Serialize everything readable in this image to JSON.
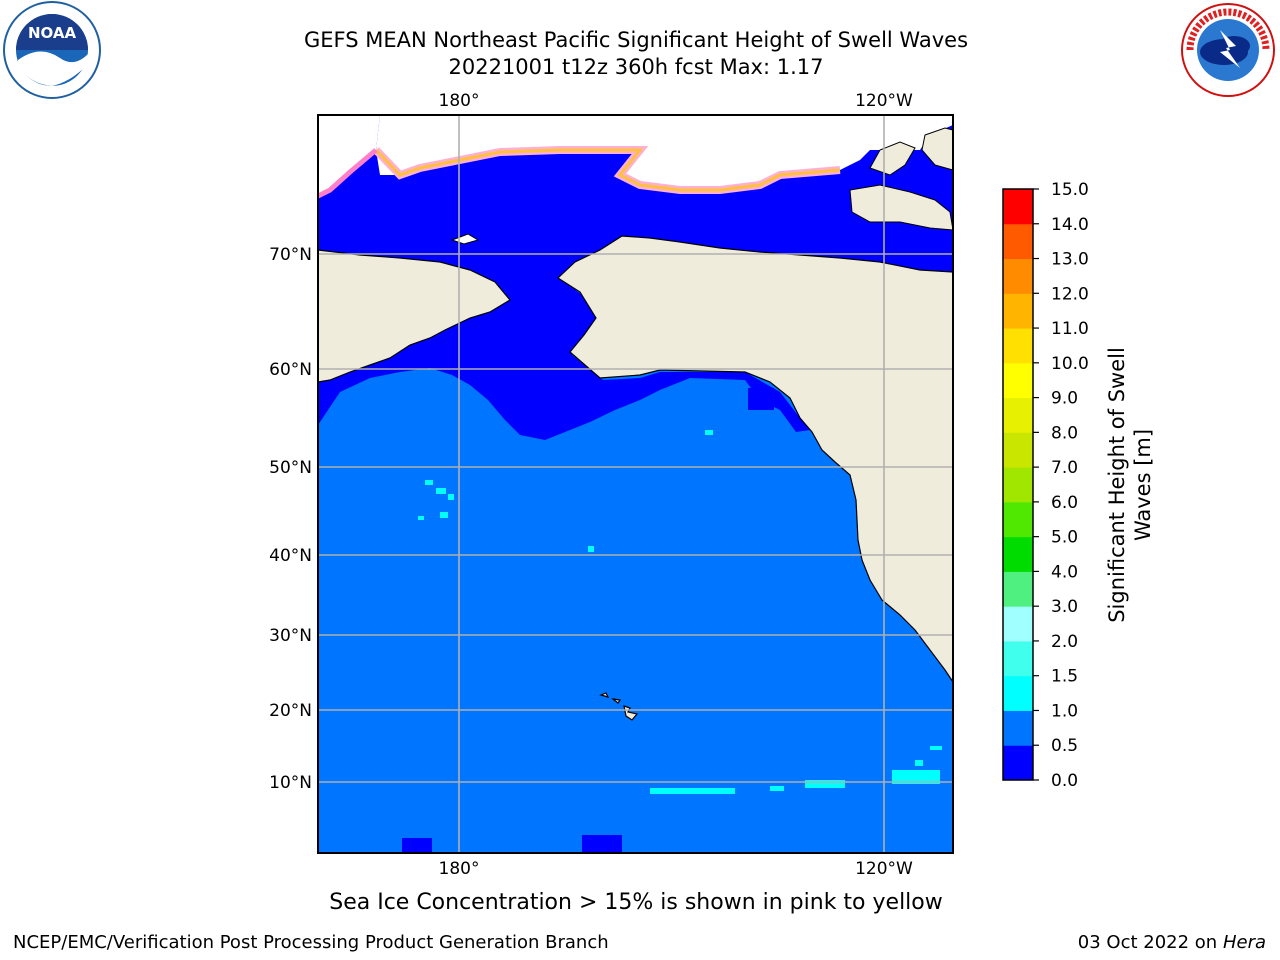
{
  "title": {
    "line1": "GEFS MEAN Northeast Pacific Significant Height of Swell Waves",
    "line2": "20221001 t12z 360h fcst   Max: 1.17"
  },
  "caption": "Sea Ice Concentration > 15% is shown in pink to yellow",
  "footer": {
    "left": "NCEP/EMC/Verification Post Processing Product Generation Branch",
    "right_date": "03 Oct 2022 on ",
    "right_host": "Hera"
  },
  "logos": {
    "left": "noara-logo",
    "left_text": "NOAA",
    "right": "nws-logo"
  },
  "colors": {
    "land": "#efecdc",
    "ice": "#ffffff",
    "band_0_0_5": "#0000ff",
    "band_0_5_1_0": "#0075ff",
    "band_1_0_1_5": "#00ffff",
    "grid": "#b0b0b0"
  },
  "chart_data": {
    "type": "heatmap",
    "title": "GEFS MEAN Northeast Pacific Significant Height of Swell Waves",
    "subtitle": "20221001 t12z 360h fcst   Max: 1.17",
    "max_value": 1.17,
    "x_ticks_top": [
      "180°",
      "120°W"
    ],
    "x_ticks_bottom": [
      "180°",
      "120°W"
    ],
    "y_ticks": [
      "70°N",
      "60°N",
      "50°N",
      "40°N",
      "30°N",
      "20°N",
      "10°N"
    ],
    "grid": true,
    "colorbar": {
      "label": "Significant Height of Swell Waves [m]",
      "label_lines": [
        "Significant Height of Swell",
        "Waves [m]"
      ],
      "ticks": [
        "15.0",
        "14.0",
        "13.0",
        "12.0",
        "11.0",
        "10.0",
        "9.0",
        "8.0",
        "7.0",
        "6.0",
        "5.0",
        "4.0",
        "3.0",
        "2.0",
        "1.5",
        "1.0",
        "0.5",
        "0.0"
      ],
      "bounds": [
        0.0,
        0.5,
        1.0,
        1.5,
        2.0,
        3.0,
        4.0,
        5.0,
        6.0,
        7.0,
        8.0,
        9.0,
        10.0,
        11.0,
        12.0,
        13.0,
        14.0,
        15.0
      ],
      "colors": [
        "#0000ff",
        "#0075ff",
        "#00ffff",
        "#40ffec",
        "#a0ffff",
        "#50f080",
        "#00dc00",
        "#50e800",
        "#a0e600",
        "#c8e600",
        "#e6f000",
        "#ffff00",
        "#ffe000",
        "#ffb400",
        "#ff8c00",
        "#ff5a00",
        "#ff0000"
      ]
    }
  }
}
